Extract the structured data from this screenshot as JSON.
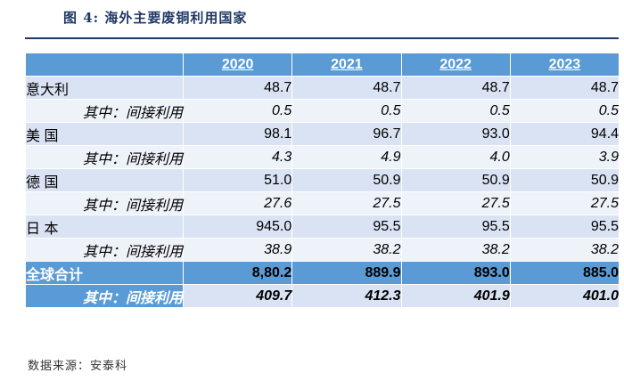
{
  "figure_title": "图 4:  海外主要废铜利用国家",
  "columns": [
    "2020",
    "2021",
    "2022",
    "2023"
  ],
  "rows": [
    {
      "label": "意大利",
      "values": [
        "48.7",
        "48.7",
        "48.7",
        "48.7"
      ],
      "sub_label": "其中：间接利用",
      "sub_values": [
        "0.5",
        "0.5",
        "0.5",
        "0.5"
      ]
    },
    {
      "label": "美 国",
      "values": [
        "98.1",
        "96.7",
        "93.0",
        "94.4"
      ],
      "sub_label": "其中：间接利用",
      "sub_values": [
        "4.3",
        "4.9",
        "4.0",
        "3.9"
      ]
    },
    {
      "label": "德 国",
      "values": [
        "51.0",
        "50.9",
        "50.9",
        "50.9"
      ],
      "sub_label": "其中：间接利用",
      "sub_values": [
        "27.6",
        "27.5",
        "27.5",
        "27.5"
      ]
    },
    {
      "label": "日 本",
      "values": [
        "945.0",
        "95.5",
        "95.5",
        "95.5"
      ],
      "sub_label": "其中：间接利用",
      "sub_values": [
        "38.9",
        "38.2",
        "38.2",
        "38.2"
      ]
    }
  ],
  "total": {
    "label": "全球合计",
    "values": [
      "8,80.2",
      "889.9",
      "893.0",
      "885.0"
    ],
    "sub_label": "其中：间接利用",
    "sub_values": [
      "409.7",
      "412.3",
      "401.9",
      "401.0"
    ]
  },
  "source": "数据来源：安泰科",
  "colors": {
    "header_blue": "#5b9bd5",
    "row_light": "#dae3f3",
    "row_lighter": "#eef2f9",
    "title_navy": "#1f3864"
  }
}
